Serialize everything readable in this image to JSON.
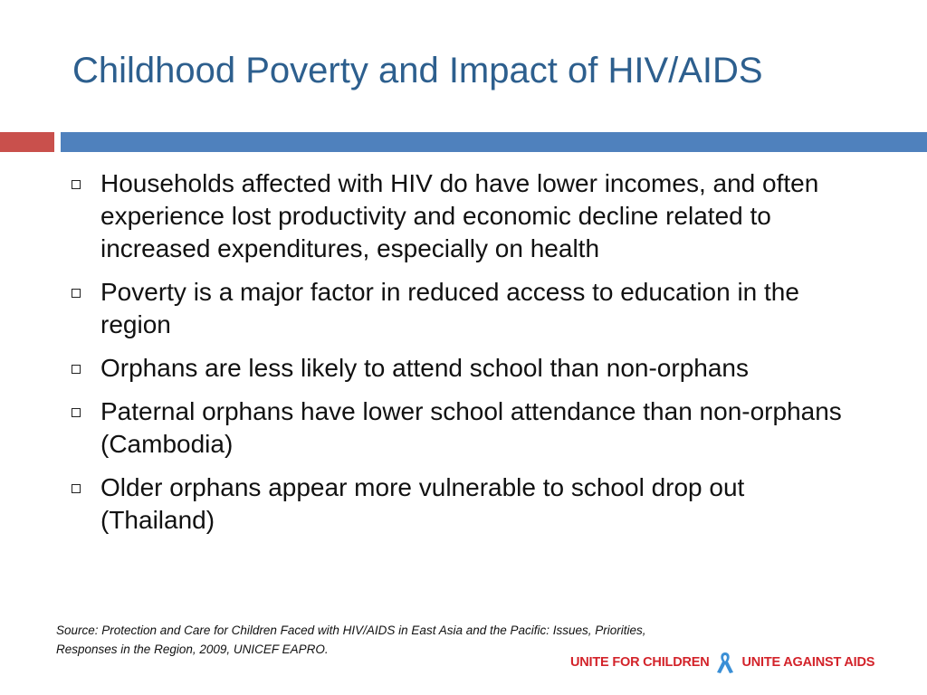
{
  "slide": {
    "title": "Childhood Poverty and Impact of HIV/AIDS",
    "bullets": [
      "Households affected with HIV do have lower incomes, and often experience lost productivity and economic decline related to increased expenditures, especially on health",
      "Poverty is a major factor in reduced access to education  in the region",
      "Orphans are less likely to attend school than non-orphans",
      "Paternal orphans have lower school attendance than non-orphans (Cambodia)",
      "Older orphans appear more vulnerable to school drop out (Thailand)"
    ],
    "source_line1": "Source: Protection and Care for Children Faced with HIV/AIDS in East Asia and the Pacific: Issues, Priorities,",
    "source_line2": "Responses in the Region, 2009, UNICEF EAPRO."
  },
  "logo": {
    "left_text": "UNITE FOR CHILDREN",
    "right_text": "UNITE AGAINST AIDS",
    "icon": "ribbon-icon",
    "text_color": "#d3232a",
    "ribbon_color": "#3a8fd6"
  },
  "colors": {
    "title": "#2d5f8e",
    "accent_red": "#c9504c",
    "accent_blue": "#4f81bd"
  }
}
